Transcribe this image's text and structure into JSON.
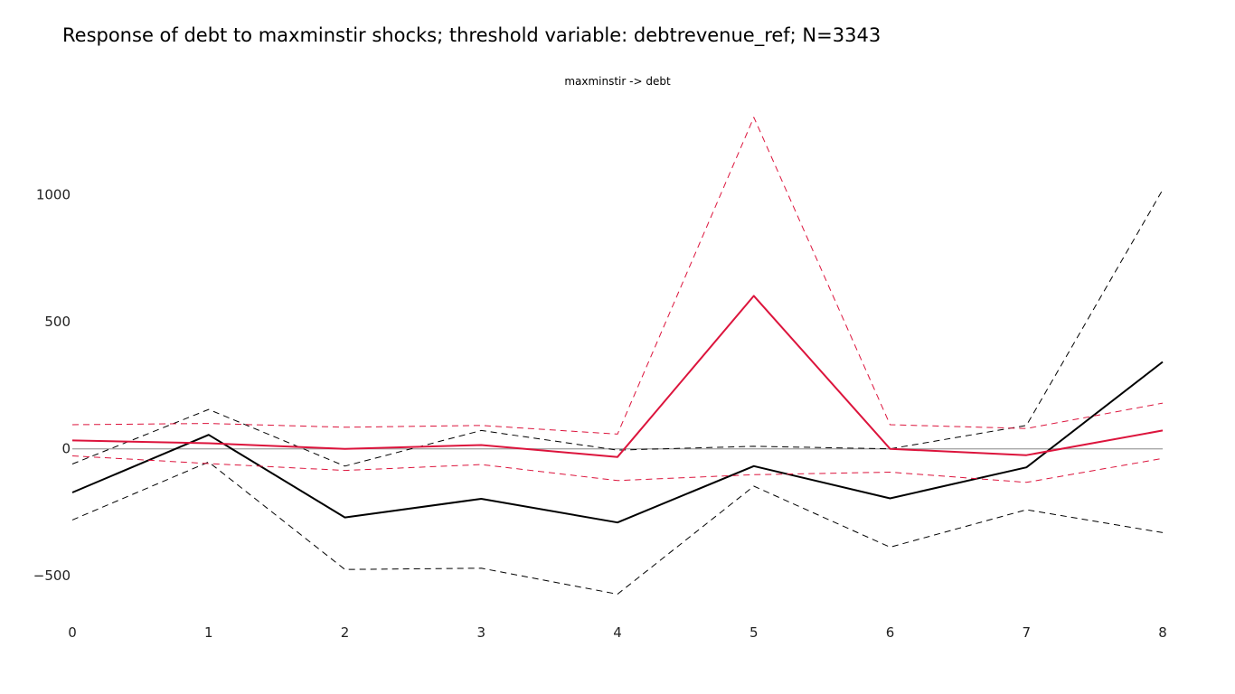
{
  "title": "Response of debt to maxminstir shocks; threshold variable: debtrevenue_ref; N=3343",
  "subtitle": "maxminstir -> debt",
  "chart_data": {
    "type": "line",
    "title": "Response of debt to maxminstir shocks; threshold variable: debtrevenue_ref; N=3343",
    "subtitle": "maxminstir -> debt",
    "x": [
      0,
      1,
      2,
      3,
      4,
      5,
      6,
      7,
      8
    ],
    "xlim": [
      0,
      8
    ],
    "ylim": [
      -670,
      1340
    ],
    "x_ticks": [
      "0",
      "1",
      "2",
      "3",
      "4",
      "5",
      "6",
      "7",
      "8"
    ],
    "y_ticks": [
      {
        "value": -500,
        "label": "−500"
      },
      {
        "value": 0,
        "label": "0"
      },
      {
        "value": 500,
        "label": "500"
      },
      {
        "value": 1000,
        "label": "1000"
      }
    ],
    "zero_line": true,
    "grid": false,
    "series": [
      {
        "values": [
          -172,
          55,
          -270,
          -197,
          -290,
          -68,
          -195,
          -73,
          342
        ],
        "color": "#000000",
        "dash": "solid"
      },
      {
        "values": [
          -60,
          155,
          -68,
          72,
          -5,
          10,
          0,
          92,
          1020
        ],
        "color": "#000000",
        "dash": "dashed"
      },
      {
        "values": [
          -280,
          -52,
          -475,
          -470,
          -572,
          -147,
          -387,
          -240,
          -330
        ],
        "color": "#000000",
        "dash": "dashed"
      },
      {
        "values": [
          33,
          22,
          0,
          15,
          -32,
          602,
          0,
          -25,
          72
        ],
        "color": "#dc143c",
        "dash": "solid"
      },
      {
        "values": [
          95,
          100,
          85,
          92,
          58,
          1305,
          95,
          80,
          180
        ],
        "color": "#dc143c",
        "dash": "dashed"
      },
      {
        "values": [
          -28,
          -58,
          -85,
          -62,
          -125,
          -102,
          -92,
          -132,
          -38
        ],
        "color": "#dc143c",
        "dash": "dashed"
      }
    ]
  }
}
